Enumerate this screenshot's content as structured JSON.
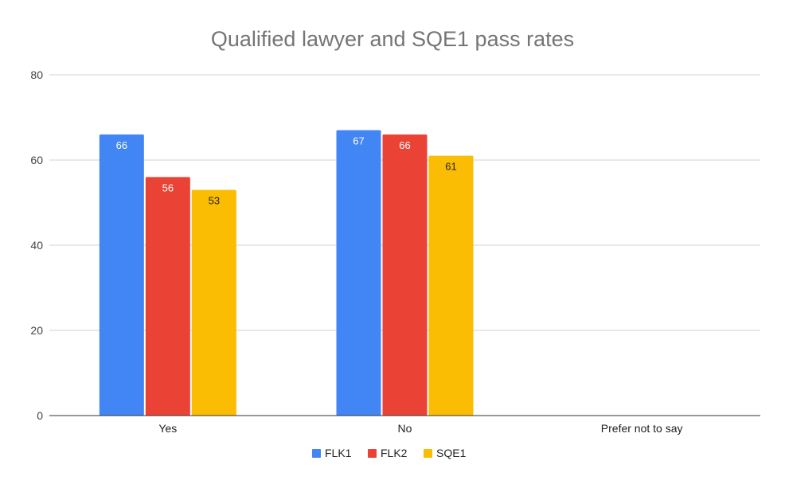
{
  "chart_data": {
    "type": "bar",
    "title": "Qualified lawyer and SQE1 pass rates",
    "xlabel": "",
    "ylabel": "",
    "ylim": [
      0,
      80
    ],
    "yticks": [
      0,
      20,
      40,
      60,
      80
    ],
    "grid": true,
    "legend_position": "bottom",
    "categories": [
      "Yes",
      "No",
      "Prefer not to say"
    ],
    "series": [
      {
        "name": "FLK1",
        "color": "#4285F4",
        "label_color": "#ffffff",
        "values": [
          66,
          67,
          null
        ]
      },
      {
        "name": "FLK2",
        "color": "#EA4335",
        "label_color": "#ffffff",
        "values": [
          56,
          66,
          null
        ]
      },
      {
        "name": "SQE1",
        "color": "#FBBC04",
        "label_color": "#222222",
        "values": [
          53,
          61,
          null
        ]
      }
    ]
  }
}
